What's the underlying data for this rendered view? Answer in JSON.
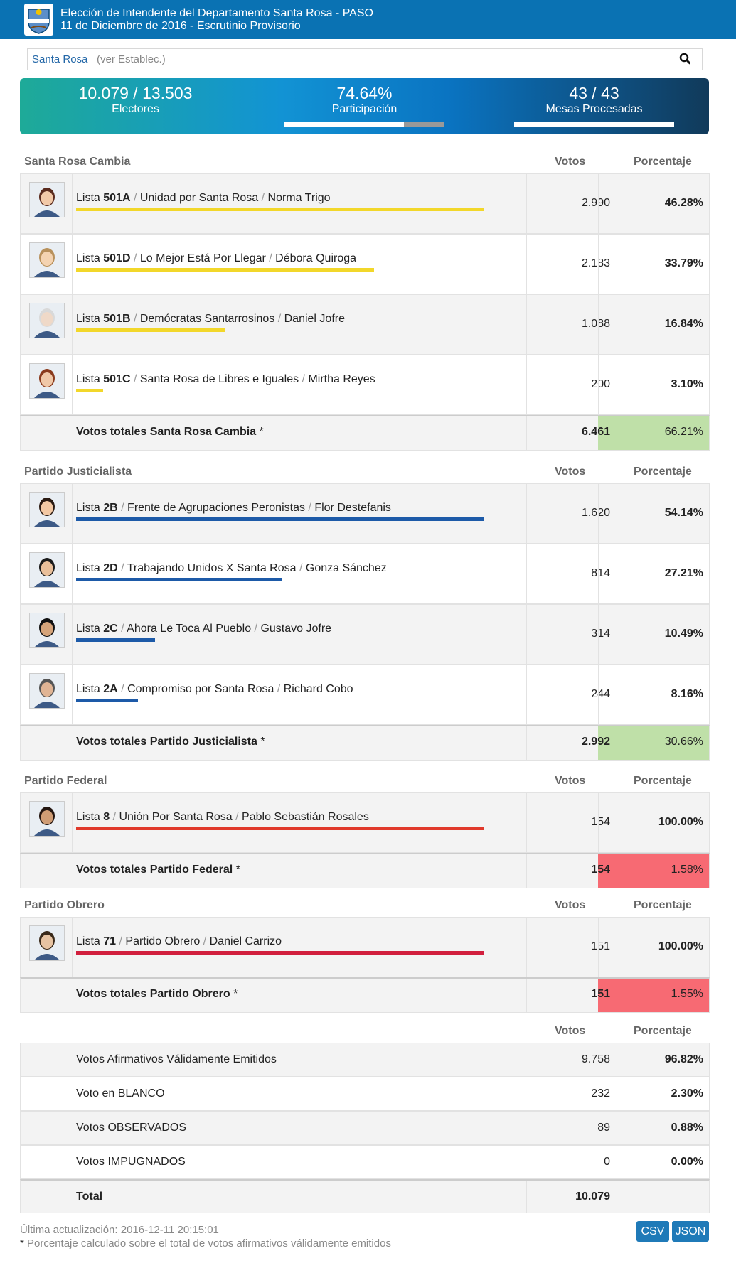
{
  "header": {
    "title": "Elección de Intendente del Departamento Santa Rosa - PASO",
    "subtitle": "11 de Diciembre de 2016 - Escrutinio Provisorio"
  },
  "search": {
    "location": "Santa Rosa",
    "sub": "(ver Establec.)",
    "icon": "search-icon"
  },
  "stats": [
    {
      "value": "10.079 / 13.503",
      "label": "Electores"
    },
    {
      "value": "74.64%",
      "label": "Participación",
      "progress": 0.7464
    },
    {
      "value": "43 / 43",
      "label": "Mesas Procesadas",
      "progress": 1.0
    }
  ],
  "column_votes": "Votos",
  "column_pct": "Porcentaje",
  "sections": [
    {
      "name": "Santa Rosa Cambia",
      "bar_color": "#f2d72a",
      "total_label": "Votos totales Santa Rosa Cambia",
      "total_votes": "6.461",
      "total_pct": "66.21%",
      "total_color": "#bfe0a8",
      "rows": [
        {
          "prefix": "Lista",
          "code": "501A",
          "list": "Unidad por Santa Rosa",
          "candidate": "Norma Trigo",
          "votes": "2.990",
          "pct": "46.28%",
          "bar": 1.0
        },
        {
          "prefix": "Lista",
          "code": "501D",
          "list": "Lo Mejor Está Por Llegar",
          "candidate": "Débora Quiroga",
          "votes": "2.183",
          "pct": "33.79%",
          "bar": 0.73
        },
        {
          "prefix": "Lista",
          "code": "501B",
          "list": "Demócratas Santarrosinos",
          "candidate": "Daniel Jofre",
          "votes": "1.088",
          "pct": "16.84%",
          "bar": 0.364
        },
        {
          "prefix": "Lista",
          "code": "501C",
          "list": "Santa Rosa de Libres e Iguales",
          "candidate": "Mirtha Reyes",
          "votes": "200",
          "pct": "3.10%",
          "bar": 0.067
        }
      ]
    },
    {
      "name": "Partido Justicialista",
      "bar_color": "#1d5aa8",
      "total_label": "Votos totales Partido Justicialista",
      "total_votes": "2.992",
      "total_pct": "30.66%",
      "total_color": "#bfe0a8",
      "rows": [
        {
          "prefix": "Lista",
          "code": "2B",
          "list": "Frente de Agrupaciones Peronistas",
          "candidate": "Flor Destefanis",
          "votes": "1.620",
          "pct": "54.14%",
          "bar": 1.0
        },
        {
          "prefix": "Lista",
          "code": "2D",
          "list": "Trabajando Unidos X Santa Rosa",
          "candidate": "Gonza Sánchez",
          "votes": "814",
          "pct": "27.21%",
          "bar": 0.503
        },
        {
          "prefix": "Lista",
          "code": "2C",
          "list": "Ahora Le Toca Al Pueblo",
          "candidate": "Gustavo Jofre",
          "votes": "314",
          "pct": "10.49%",
          "bar": 0.194
        },
        {
          "prefix": "Lista",
          "code": "2A",
          "list": "Compromiso por Santa Rosa",
          "candidate": "Richard Cobo",
          "votes": "244",
          "pct": "8.16%",
          "bar": 0.151
        }
      ]
    },
    {
      "name": "Partido Federal",
      "bar_color": "#e0392b",
      "total_label": "Votos totales Partido Federal",
      "total_votes": "154",
      "total_pct": "1.58%",
      "total_color": "#f76a73",
      "rows": [
        {
          "prefix": "Lista",
          "code": "8",
          "list": "Unión Por Santa Rosa",
          "candidate": "Pablo Sebastián Rosales",
          "votes": "154",
          "pct": "100.00%",
          "bar": 1.0
        }
      ]
    },
    {
      "name": "Partido Obrero",
      "bar_color": "#d11f3d",
      "total_label": "Votos totales Partido Obrero",
      "total_votes": "151",
      "total_pct": "1.55%",
      "total_color": "#f76a73",
      "rows": [
        {
          "prefix": "Lista",
          "code": "71",
          "list": "Partido Obrero",
          "candidate": "Daniel Carrizo",
          "votes": "151",
          "pct": "100.00%",
          "bar": 1.0
        }
      ]
    }
  ],
  "summary": {
    "rows": [
      {
        "label": "Votos Afirmativos Válidamente Emitidos",
        "votes": "9.758",
        "pct": "96.82%"
      },
      {
        "label": "Voto en BLANCO",
        "votes": "232",
        "pct": "2.30%"
      },
      {
        "label": "Votos OBSERVADOS",
        "votes": "89",
        "pct": "0.88%"
      },
      {
        "label": "Votos IMPUGNADOS",
        "votes": "0",
        "pct": "0.00%"
      }
    ],
    "total_label": "Total",
    "total_votes": "10.079"
  },
  "footer": {
    "updated": "Última actualización: 2016-12-11 20:15:01",
    "note": "Porcentaje calculado sobre el total de votos afirmativos válidamente emitidos",
    "csv": "CSV",
    "json": "JSON"
  }
}
